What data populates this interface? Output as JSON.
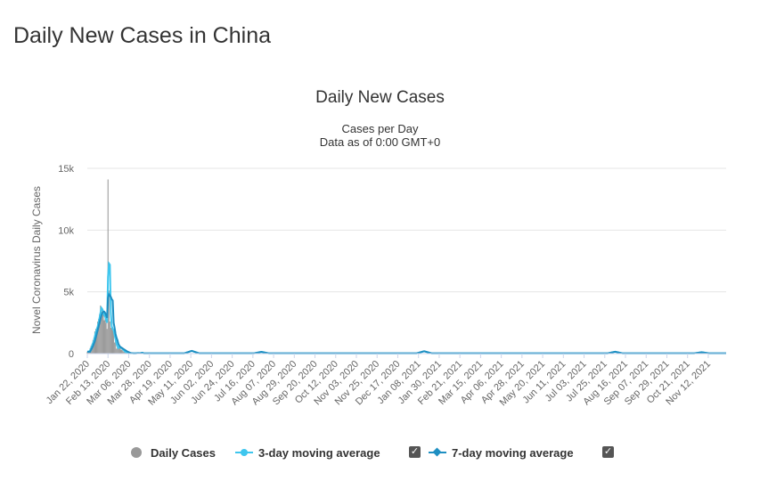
{
  "page": {
    "title": "Daily New Cases in China"
  },
  "chart_data": {
    "type": "bar",
    "title": "Daily New Cases",
    "subtitle_line1": "Cases per Day",
    "subtitle_line2": "Data as of 0:00 GMT+0",
    "ylabel": "Novel Coronavirus Daily Cases",
    "ylim": [
      0,
      15000
    ],
    "yticks": [
      {
        "value": 0,
        "label": "0"
      },
      {
        "value": 5000,
        "label": "5k"
      },
      {
        "value": 10000,
        "label": "10k"
      },
      {
        "value": 15000,
        "label": "15k"
      }
    ],
    "x_start": "2020-01-22",
    "x_end": "2021-12-01",
    "xtick_labels": [
      "Jan 22, 2020",
      "Feb 13, 2020",
      "Mar 06, 2020",
      "Mar 28, 2020",
      "Apr 19, 2020",
      "May 11, 2020",
      "Jun 02, 2020",
      "Jun 24, 2020",
      "Jul 16, 2020",
      "Aug 07, 2020",
      "Aug 29, 2020",
      "Sep 20, 2020",
      "Oct 12, 2020",
      "Nov 03, 2020",
      "Nov 25, 2020",
      "Dec 17, 2020",
      "Jan 08, 2021",
      "Jan 30, 2021",
      "Feb 21, 2021",
      "Mar 15, 2021",
      "Apr 06, 2021",
      "Apr 28, 2021",
      "May 20, 2021",
      "Jun 11, 2021",
      "Jul 03, 2021",
      "Jul 25, 2021",
      "Aug 16, 2021",
      "Sep 07, 2021",
      "Sep 29, 2021",
      "Oct 21, 2021",
      "Nov 12, 2021"
    ],
    "series": [
      {
        "name": "Daily Cases",
        "color": "#999999",
        "daily_first_60_days": [
          150,
          100,
          250,
          450,
          650,
          800,
          1100,
          1300,
          1800,
          2000,
          2100,
          2600,
          2800,
          3200,
          3900,
          3700,
          3200,
          3400,
          2700,
          3000,
          2500,
          2000,
          14100,
          5100,
          2600,
          2100,
          2050,
          1900,
          1750,
          900,
          1000,
          400,
          500,
          400,
          600,
          500,
          300,
          450,
          200,
          150,
          120,
          130,
          100,
          40,
          20,
          40,
          30,
          20,
          20,
          15,
          15,
          30,
          40,
          50,
          40,
          30,
          40,
          80,
          100,
          50
        ],
        "baseline_after": 20
      },
      {
        "name": "3-day moving average",
        "color": "#3ec6ee",
        "first_60_days": [
          150,
          170,
          170,
          270,
          450,
          630,
          850,
          1050,
          1400,
          1700,
          1950,
          2200,
          2500,
          2900,
          3300,
          3700,
          3600,
          3400,
          3100,
          3000,
          2700,
          2500,
          6200,
          7300,
          7200,
          3300,
          2200,
          2000,
          1900,
          1500,
          1200,
          800,
          600,
          450,
          500,
          500,
          450,
          420,
          320,
          270,
          160,
          130,
          120,
          90,
          55,
          35,
          30,
          30,
          25,
          20,
          17,
          20,
          30,
          40,
          45,
          40,
          35,
          50,
          75,
          75
        ],
        "baseline_after": 20
      },
      {
        "name": "7-day moving average",
        "color": "#1e8fc2",
        "first_60_days": [
          150,
          150,
          150,
          150,
          300,
          450,
          600,
          800,
          1000,
          1300,
          1600,
          1900,
          2200,
          2500,
          2800,
          3100,
          3300,
          3400,
          3400,
          3300,
          3100,
          2900,
          4500,
          4800,
          4700,
          4600,
          4400,
          4300,
          2500,
          2100,
          1600,
          1300,
          1100,
          800,
          650,
          550,
          500,
          450,
          400,
          350,
          300,
          250,
          200,
          150,
          120,
          80,
          60,
          40,
          35,
          30,
          25,
          25,
          28,
          32,
          36,
          40,
          40,
          45,
          50,
          55
        ],
        "baseline_after": 25
      }
    ],
    "bumps": [
      {
        "date": "2020-05-12",
        "value": 200
      },
      {
        "date": "2020-07-25",
        "value": 120
      },
      {
        "date": "2021-01-14",
        "value": 170
      },
      {
        "date": "2021-08-05",
        "value": 130
      },
      {
        "date": "2021-11-05",
        "value": 90
      }
    ],
    "legend": [
      {
        "label": "Daily Cases",
        "checkbox": false
      },
      {
        "label": "3-day moving average",
        "checkbox": true
      },
      {
        "label": "7-day moving average",
        "checkbox": true
      }
    ],
    "checkmark": "✓"
  }
}
